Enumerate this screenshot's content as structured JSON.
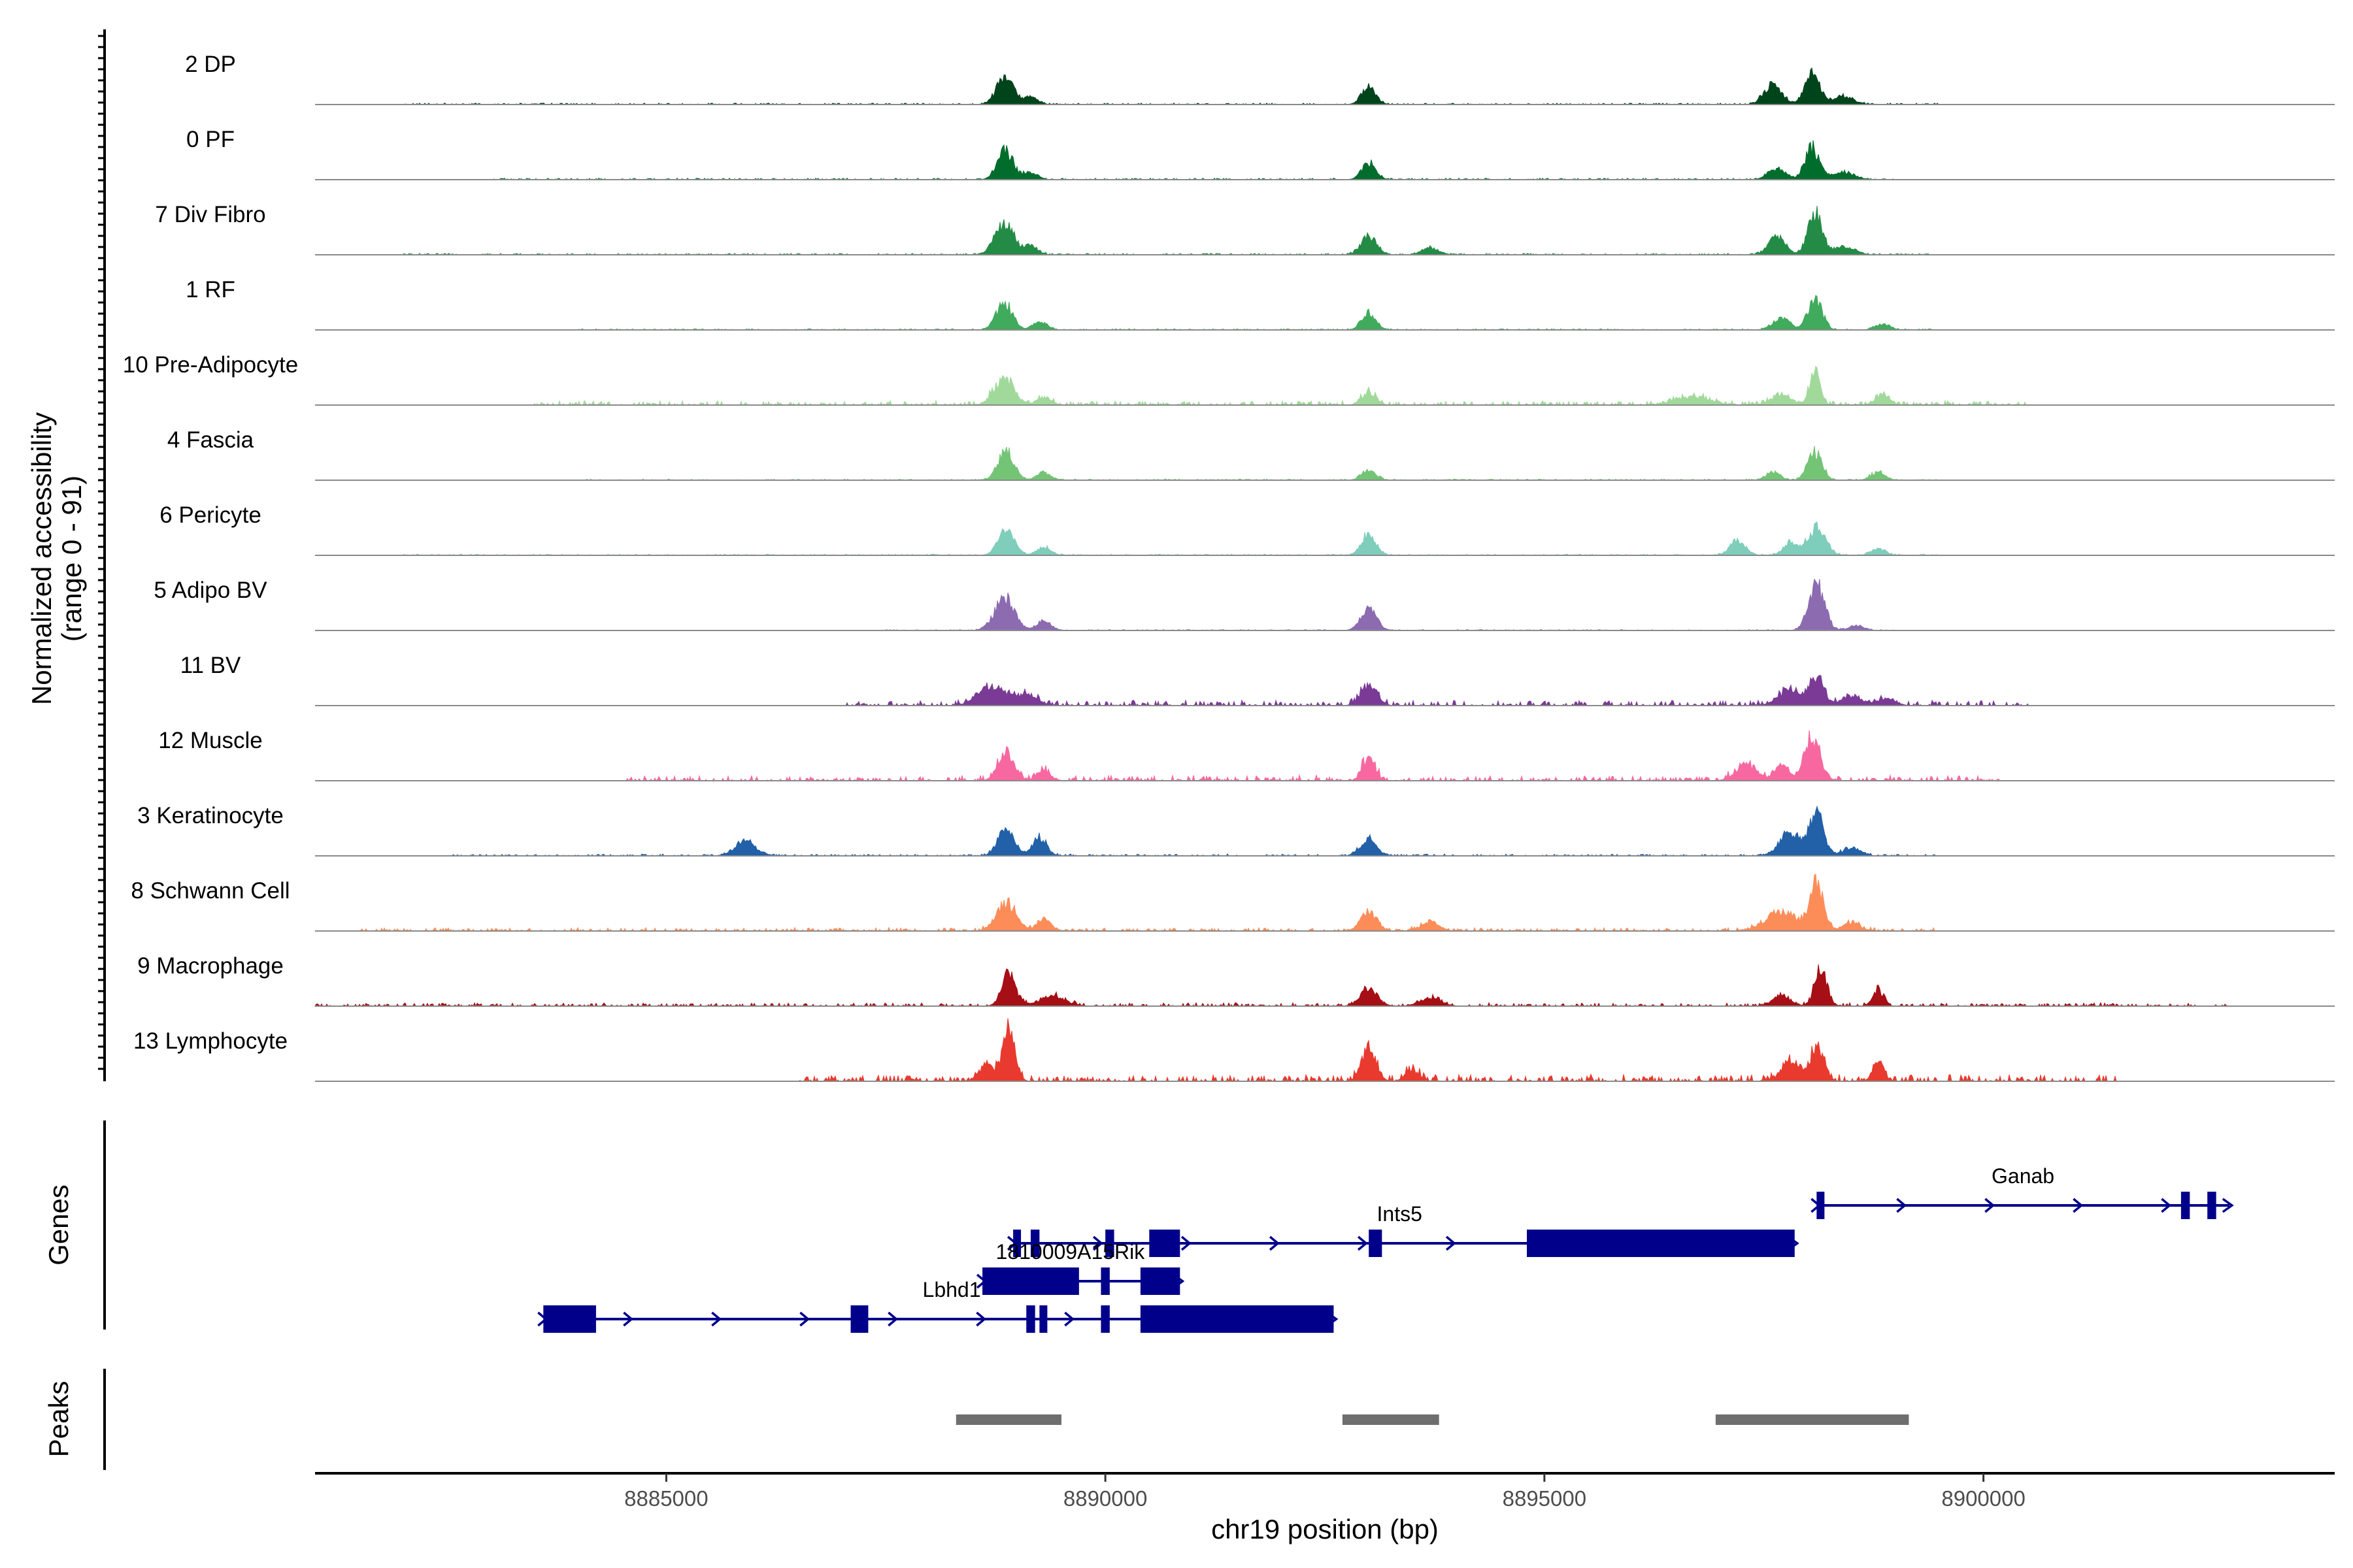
{
  "chart_data": {
    "type": "area",
    "chromosome": "chr19",
    "xlabel": "chr19 position (bp)",
    "ylabel_line1": "Normalized accessibility",
    "ylabel_line2": "(range 0 - 91)",
    "xlim": [
      8881000,
      8904000
    ],
    "ylim": [
      0,
      91
    ],
    "x_ticks": [
      {
        "value": 8885000,
        "label": "8885000"
      },
      {
        "value": 8890000,
        "label": "8890000"
      },
      {
        "value": 8895000,
        "label": "8895000"
      },
      {
        "value": 8900000,
        "label": "8900000"
      }
    ],
    "series": [
      {
        "name": "2 DP",
        "color": "#00441B",
        "peaks": [
          [
            8888860,
            38,
            90
          ],
          [
            8889150,
            10,
            80
          ],
          [
            8893000,
            22,
            80
          ],
          [
            8897600,
            24,
            100
          ],
          [
            8898050,
            44,
            80
          ],
          [
            8898400,
            10,
            120
          ]
        ],
        "noise": 1.5,
        "range": [
          8882000,
          8899500
        ]
      },
      {
        "name": "0 PF",
        "color": "#006D2C",
        "peaks": [
          [
            8888860,
            36,
            90
          ],
          [
            8889150,
            9,
            80
          ],
          [
            8893000,
            20,
            80
          ],
          [
            8897650,
            14,
            100
          ],
          [
            8898050,
            40,
            80
          ],
          [
            8898400,
            10,
            120
          ]
        ],
        "noise": 1.5,
        "range": [
          8883000,
          8899000
        ]
      },
      {
        "name": "7 Div Fibro",
        "color": "#238B45",
        "peaks": [
          [
            8888850,
            38,
            110
          ],
          [
            8889150,
            10,
            80
          ],
          [
            8893000,
            22,
            90
          ],
          [
            8893700,
            8,
            100
          ],
          [
            8897650,
            24,
            90
          ],
          [
            8898080,
            52,
            80
          ],
          [
            8898400,
            10,
            120
          ]
        ],
        "noise": 1.5,
        "range": [
          8882000,
          8899500
        ]
      },
      {
        "name": "1 RF",
        "color": "#41AB5D",
        "peaks": [
          [
            8888850,
            34,
            90
          ],
          [
            8889250,
            10,
            80
          ],
          [
            8893000,
            20,
            80
          ],
          [
            8897700,
            14,
            100
          ],
          [
            8898080,
            40,
            80
          ],
          [
            8898850,
            8,
            80
          ]
        ],
        "noise": 1.2,
        "range": [
          8884000,
          8899500
        ]
      },
      {
        "name": "10 Pre-Adipocyte",
        "color": "#A1D99B",
        "peaks": [
          [
            8888850,
            36,
            110
          ],
          [
            8889300,
            10,
            80
          ],
          [
            8893000,
            16,
            80
          ],
          [
            8896700,
            10,
            200
          ],
          [
            8897700,
            12,
            120
          ],
          [
            8898080,
            40,
            60
          ],
          [
            8898850,
            14,
            80
          ]
        ],
        "noise": 4.0,
        "range": [
          8883500,
          8900500
        ]
      },
      {
        "name": "4 Fascia",
        "color": "#74C476",
        "peaks": [
          [
            8888870,
            36,
            90
          ],
          [
            8889300,
            10,
            80
          ],
          [
            8893000,
            12,
            80
          ],
          [
            8897600,
            10,
            80
          ],
          [
            8898080,
            36,
            80
          ],
          [
            8898800,
            10,
            80
          ]
        ],
        "noise": 1.2,
        "range": [
          8884000,
          8899500
        ]
      },
      {
        "name": "6 Pericyte",
        "color": "#7FCDBB",
        "peaks": [
          [
            8888870,
            34,
            90
          ],
          [
            8889300,
            10,
            80
          ],
          [
            8893000,
            28,
            80
          ],
          [
            8897200,
            18,
            90
          ],
          [
            8897800,
            16,
            80
          ],
          [
            8898100,
            34,
            100
          ],
          [
            8898800,
            8,
            80
          ]
        ],
        "noise": 1.2,
        "range": [
          8882000,
          8899500
        ]
      },
      {
        "name": "5 Adipo BV",
        "color": "#8C6BB1",
        "peaks": [
          [
            8888850,
            42,
            110
          ],
          [
            8889300,
            12,
            80
          ],
          [
            8893000,
            26,
            90
          ],
          [
            8898100,
            56,
            90
          ],
          [
            8898550,
            6,
            80
          ]
        ],
        "noise": 1.0,
        "range": [
          8887500,
          8899000
        ]
      },
      {
        "name": "11 BV",
        "color": "#7A3A96",
        "peaks": [
          [
            8888700,
            26,
            150
          ],
          [
            8889100,
            14,
            120
          ],
          [
            8893000,
            26,
            90
          ],
          [
            8897800,
            18,
            140
          ],
          [
            8898100,
            36,
            80
          ],
          [
            8898500,
            12,
            120
          ],
          [
            8898900,
            8,
            100
          ]
        ],
        "noise": 5.0,
        "range": [
          8887000,
          8900600
        ]
      },
      {
        "name": "12 Muscle",
        "color": "#F768A1",
        "peaks": [
          [
            8888870,
            36,
            90
          ],
          [
            8889300,
            12,
            80
          ],
          [
            8893000,
            30,
            70
          ],
          [
            8897300,
            20,
            120
          ],
          [
            8898050,
            54,
            90
          ],
          [
            8897700,
            18,
            80
          ]
        ],
        "noise": 5.0,
        "range": [
          8884500,
          8900200
        ]
      },
      {
        "name": "3 Keratinocyte",
        "color": "#2260A8",
        "peaks": [
          [
            8885900,
            18,
            120
          ],
          [
            8888870,
            36,
            90
          ],
          [
            8889250,
            22,
            80
          ],
          [
            8893000,
            22,
            90
          ],
          [
            8897800,
            28,
            120
          ],
          [
            8898100,
            52,
            80
          ],
          [
            8898500,
            10,
            100
          ]
        ],
        "noise": 1.8,
        "range": [
          8882500,
          8899500
        ]
      },
      {
        "name": "8 Schwann Cell",
        "color": "#FC8D59",
        "peaks": [
          [
            8888870,
            36,
            110
          ],
          [
            8889300,
            14,
            80
          ],
          [
            8893000,
            24,
            90
          ],
          [
            8893700,
            12,
            100
          ],
          [
            8897700,
            24,
            180
          ],
          [
            8898100,
            58,
            80
          ],
          [
            8898500,
            10,
            100
          ]
        ],
        "noise": 3.0,
        "range": [
          8881500,
          8899500
        ]
      },
      {
        "name": "9 Macrophage",
        "color": "#A50F15",
        "peaks": [
          [
            8888900,
            40,
            80
          ],
          [
            8889400,
            12,
            150
          ],
          [
            8893000,
            20,
            100
          ],
          [
            8893700,
            10,
            120
          ],
          [
            8897700,
            14,
            100
          ],
          [
            8898150,
            48,
            70
          ],
          [
            8898800,
            20,
            60
          ]
        ],
        "noise": 3.0,
        "range": [
          8881000,
          8902800
        ]
      },
      {
        "name": "13 Lymphocyte",
        "color": "#E83A2E",
        "peaks": [
          [
            8888900,
            68,
            70
          ],
          [
            8888650,
            22,
            80
          ],
          [
            8893000,
            44,
            80
          ],
          [
            8893500,
            14,
            80
          ],
          [
            8897800,
            26,
            100
          ],
          [
            8898100,
            40,
            80
          ],
          [
            8898800,
            26,
            60
          ]
        ],
        "noise": 6.0,
        "range": [
          8886500,
          8901500
        ]
      }
    ],
    "genes_panel_title": "Genes",
    "peaks_panel_title": "Peaks",
    "gene_color": "#00008B",
    "peak_color": "#6E6E6E",
    "genes": [
      {
        "name": "Ganab",
        "row": 0,
        "start": 8898100,
        "end": 8902800,
        "exons": [
          [
            8898100,
            8898180
          ],
          [
            8902250,
            8902350
          ],
          [
            8902550,
            8902650
          ]
        ]
      },
      {
        "name": "Ints5",
        "row": 1,
        "start": 8888950,
        "end": 8897850,
        "exons": [
          [
            8888950,
            8889000
          ],
          [
            8889150,
            8889250
          ],
          [
            8890000,
            8890100
          ],
          [
            8890500,
            8890850
          ],
          [
            8893000,
            8893150
          ],
          [
            8894800,
            8897850
          ]
        ]
      },
      {
        "name": "1810009A15Rik",
        "row": 2,
        "start": 8888600,
        "end": 8890850,
        "exons": [
          [
            8888600,
            8889700
          ],
          [
            8889950,
            8890050
          ],
          [
            8890400,
            8890850
          ]
        ]
      },
      {
        "name": "Lbhd1",
        "row": 3,
        "start": 8883600,
        "end": 8892600,
        "exons": [
          [
            8883600,
            8884200
          ],
          [
            8887100,
            8887300
          ],
          [
            8889100,
            8889200
          ],
          [
            8889250,
            8889300
          ],
          [
            8889950,
            8890050
          ],
          [
            8890400,
            8892600
          ]
        ]
      }
    ],
    "peaks": [
      {
        "start": 8888300,
        "end": 8889500
      },
      {
        "start": 8892700,
        "end": 8893800
      },
      {
        "start": 8896950,
        "end": 8899150
      }
    ]
  }
}
